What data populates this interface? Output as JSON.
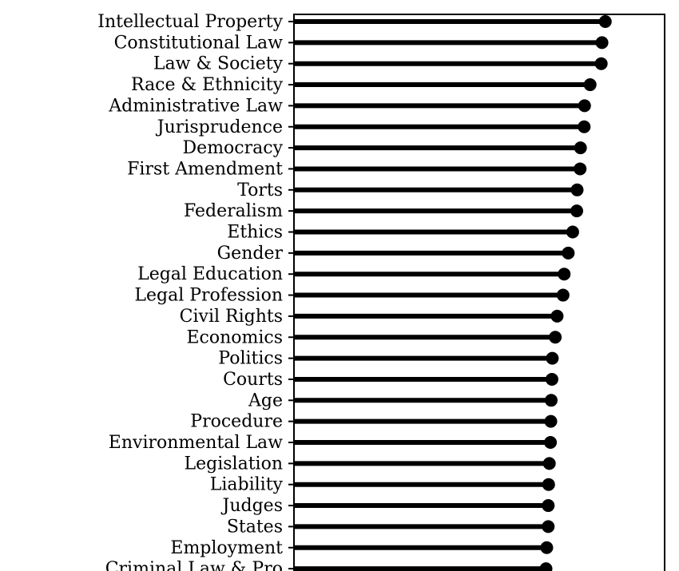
{
  "chart_data": {
    "type": "lollipop",
    "categories": [
      "Intellectual Property",
      "Constitutional Law",
      "Law & Society",
      "Race & Ethnicity",
      "Administrative Law",
      "Jurisprudence",
      "Democracy",
      "First Amendment",
      "Torts",
      "Federalism",
      "Ethics",
      "Gender",
      "Legal Education",
      "Legal Profession",
      "Civil Rights",
      "Economics",
      "Politics",
      "Courts",
      "Age",
      "Procedure",
      "Environmental Law",
      "Legislation",
      "Liability",
      "Judges",
      "States",
      "Employment",
      "Criminal Law & Pro"
    ],
    "values": [
      0.84,
      0.831,
      0.829,
      0.799,
      0.784,
      0.783,
      0.773,
      0.772,
      0.764,
      0.763,
      0.752,
      0.74,
      0.729,
      0.726,
      0.71,
      0.705,
      0.697,
      0.696,
      0.694,
      0.693,
      0.692,
      0.689,
      0.687,
      0.686,
      0.686,
      0.682,
      0.68
    ],
    "xlim": [
      0,
      1
    ],
    "title": "",
    "xlabel": "",
    "ylabel": "",
    "grid": false,
    "legend": "none",
    "colors": {
      "stem": "#000000",
      "dot": "#000000",
      "frame": "#000000",
      "background": "#ffffff"
    }
  }
}
